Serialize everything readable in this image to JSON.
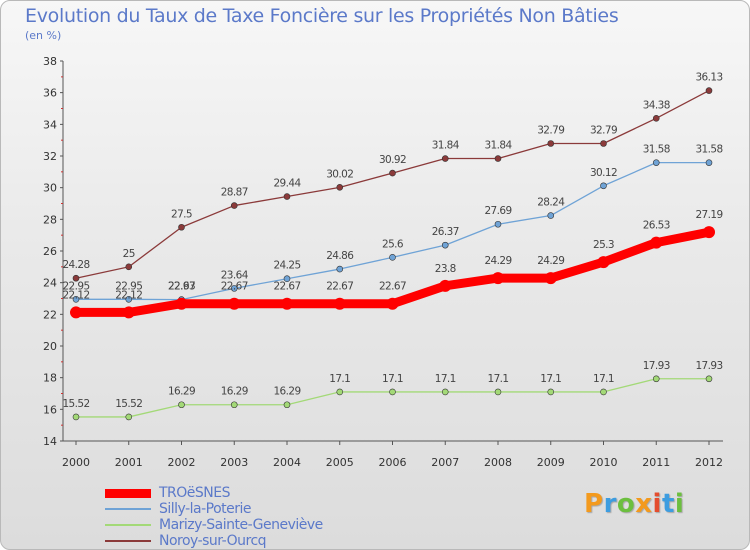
{
  "title": "Evolution du Taux de Taxe Foncière sur les Propriétés Non Bâties",
  "unit": "(en %)",
  "brand": {
    "text": "Proxiti",
    "colors": [
      "#f39a1e",
      "#3d9de0",
      "#6cbf3f",
      "#f39a1e",
      "#e44d2e",
      "#3d9de0",
      "#6cbf3f"
    ]
  },
  "chart_data": {
    "type": "line",
    "categories": [
      "2000",
      "2001",
      "2002",
      "2003",
      "2004",
      "2005",
      "2006",
      "2007",
      "2008",
      "2009",
      "2010",
      "2011",
      "2012"
    ],
    "ylim": [
      14,
      38
    ],
    "yticks": [
      "14",
      "16",
      "18",
      "20",
      "22",
      "24",
      "26",
      "28",
      "30",
      "32",
      "34",
      "36",
      "38"
    ],
    "grid": false,
    "legend_position": "bottom-left",
    "series": [
      {
        "name": "TROëSNES",
        "color": "#ff0000",
        "values": [
          22.12,
          22.12,
          22.67,
          22.67,
          22.67,
          22.67,
          22.67,
          23.8,
          24.29,
          24.29,
          25.3,
          26.53,
          27.19
        ],
        "labels": [
          "22.12",
          "22.12",
          "22.67",
          "22.67",
          "22.67",
          "22.67",
          "22.67",
          "23.8",
          "24.29",
          "24.29",
          "25.3",
          "26.53",
          "27.19"
        ]
      },
      {
        "name": "Silly-la-Poterie",
        "color": "#6fa3d6",
        "values": [
          22.95,
          22.95,
          22.93,
          23.64,
          24.25,
          24.86,
          25.6,
          26.37,
          27.69,
          28.24,
          30.12,
          31.58,
          31.58
        ],
        "labels": [
          "22.95",
          "22.95",
          "22.93",
          "23.64",
          "24.25",
          "24.86",
          "25.6",
          "26.37",
          "27.69",
          "28.24",
          "30.12",
          "31.58",
          "31.58"
        ]
      },
      {
        "name": "Marizy-Sainte-Geneviève",
        "color": "#a3d977",
        "values": [
          15.52,
          15.52,
          16.29,
          16.29,
          16.29,
          17.1,
          17.1,
          17.1,
          17.1,
          17.1,
          17.1,
          17.93,
          17.93
        ],
        "labels": [
          "15.52",
          "15.52",
          "16.29",
          "16.29",
          "16.29",
          "17.1",
          "17.1",
          "17.1",
          "17.1",
          "17.1",
          "17.1",
          "17.93",
          "17.93"
        ]
      },
      {
        "name": "Noroy-sur-Ourcq",
        "color": "#8b3a3a",
        "values": [
          24.28,
          25,
          27.5,
          28.87,
          29.44,
          30.02,
          30.92,
          31.84,
          31.84,
          32.79,
          32.79,
          34.38,
          36.13
        ],
        "labels": [
          "24.28",
          "25",
          "27.5",
          "28.87",
          "29.44",
          "30.02",
          "30.92",
          "31.84",
          "31.84",
          "32.79",
          "32.79",
          "34.38",
          "36.13"
        ]
      }
    ]
  }
}
